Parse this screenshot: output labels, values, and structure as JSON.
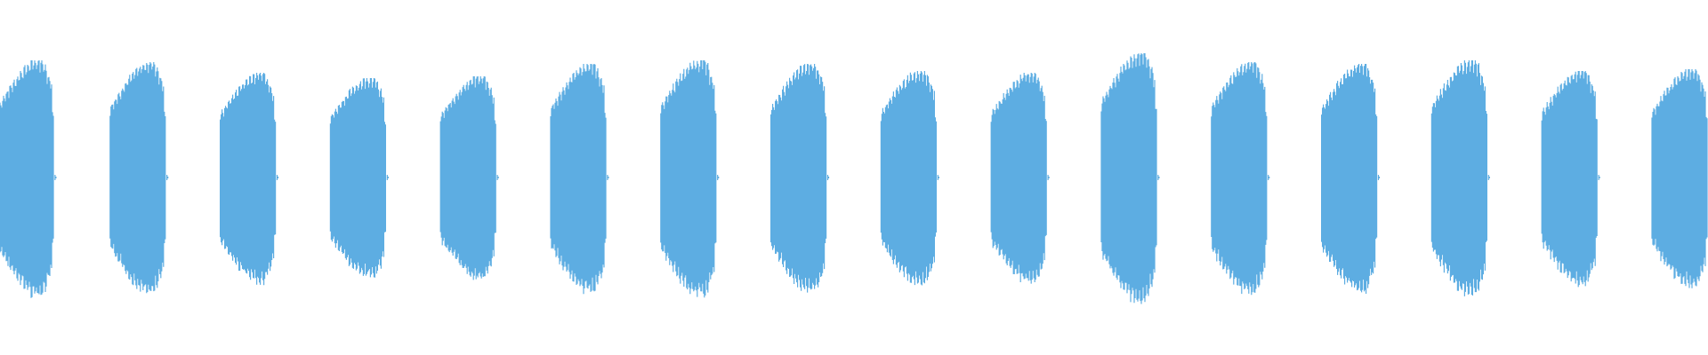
{
  "chart_data": {
    "type": "waveform",
    "color": "#5dade2",
    "background": "#ffffff",
    "axes": "none",
    "grid": false,
    "legend": "none",
    "amplitude_range": [
      -1,
      1
    ],
    "burst_count": 16,
    "burst_peak_amplitudes": [
      0.66,
      0.65,
      0.59,
      0.56,
      0.57,
      0.64,
      0.66,
      0.64,
      0.6,
      0.59,
      0.7,
      0.65,
      0.64,
      0.66,
      0.6,
      0.61
    ],
    "duty_cycle": 0.5
  }
}
